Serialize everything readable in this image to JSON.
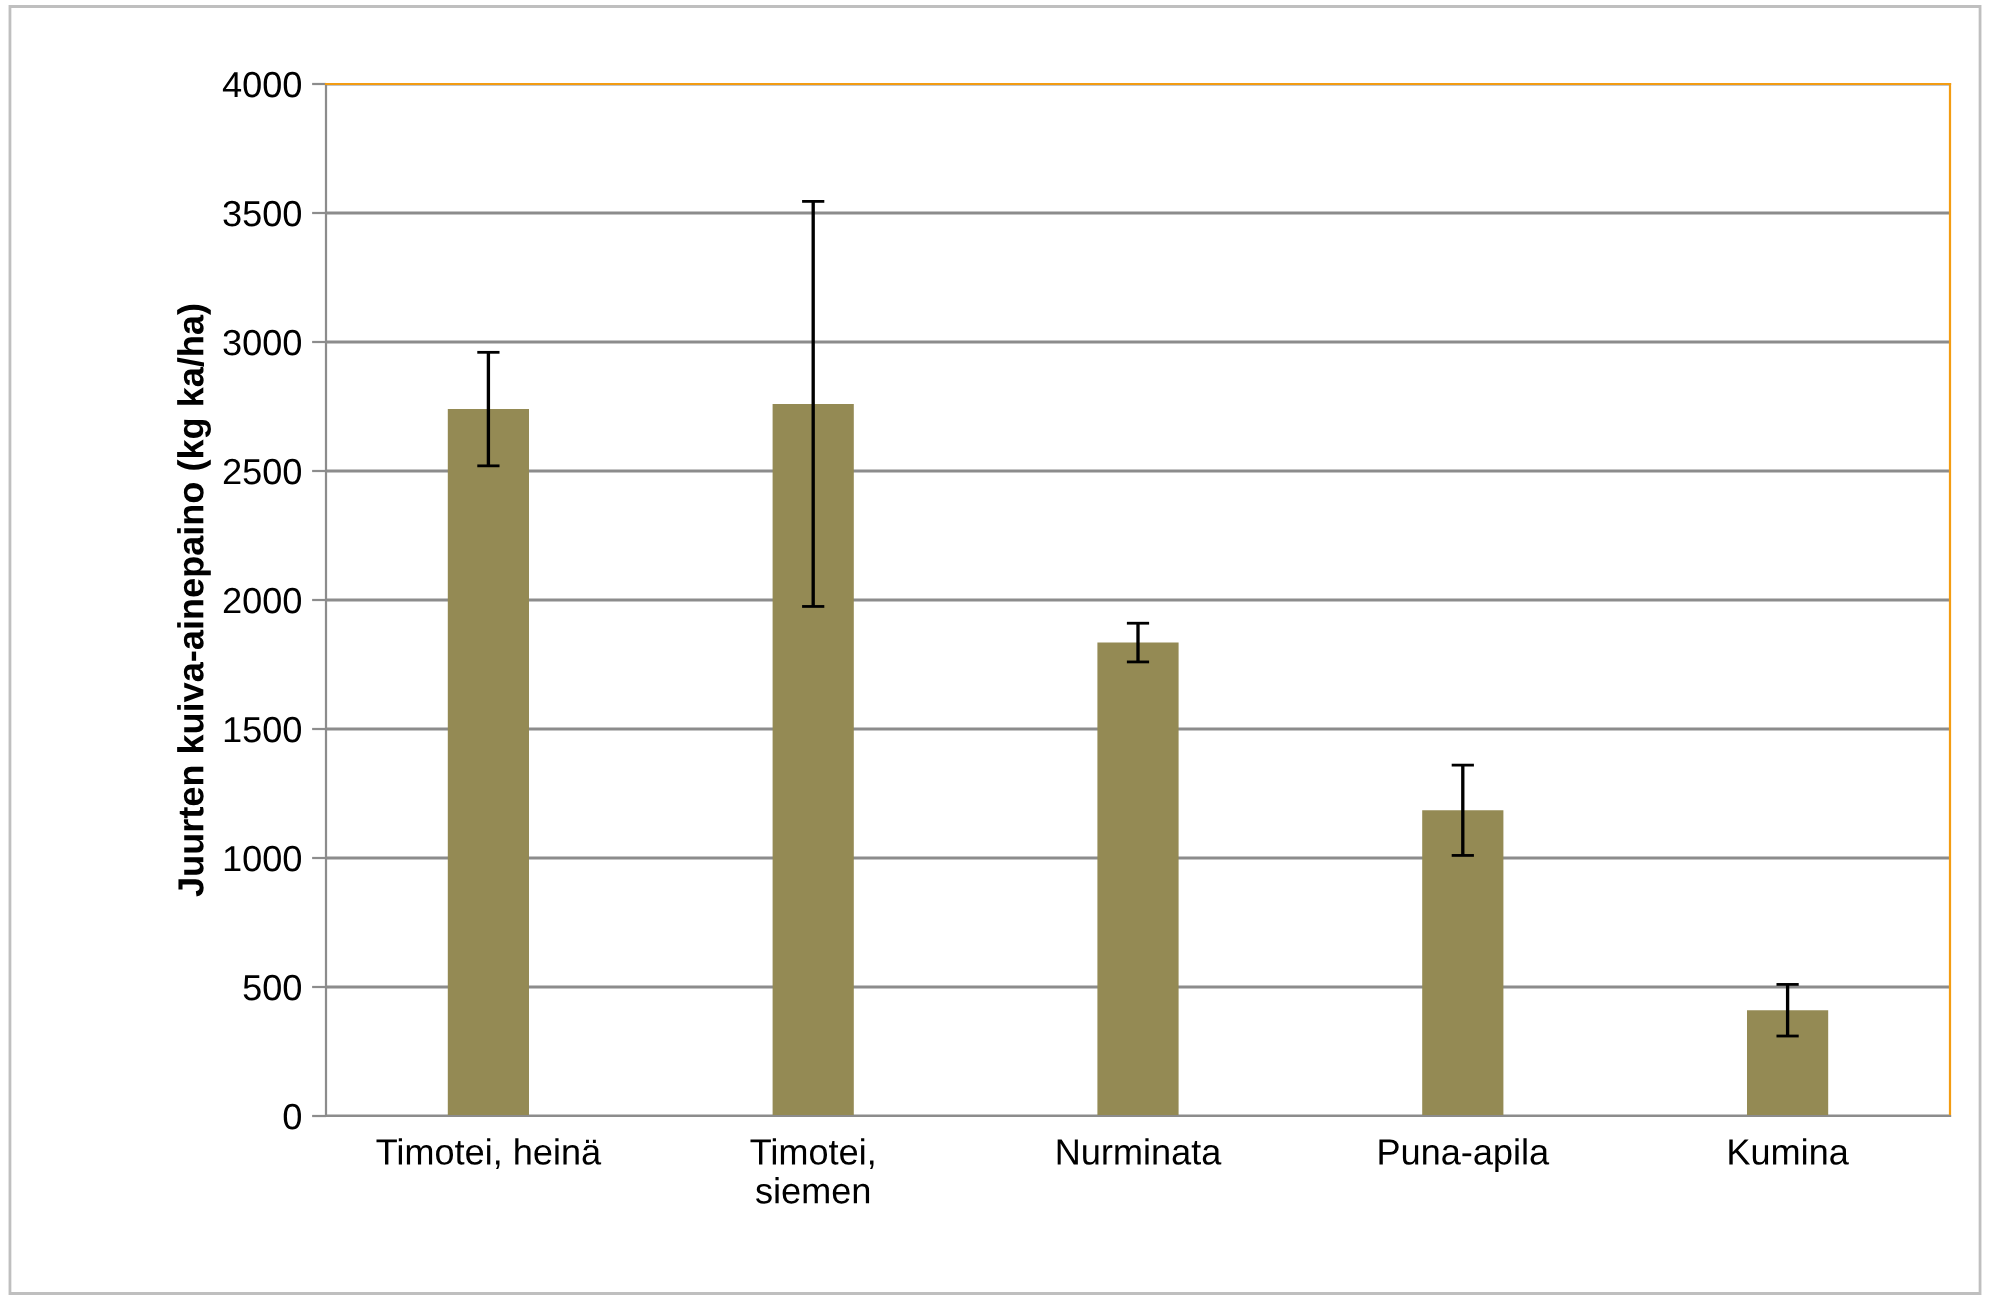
{
  "chart_data": {
    "type": "bar",
    "ylabel": "Juurten kuiva-ainepaino (kg ka/ha)",
    "categories": [
      "Timotei, heinä",
      "Timotei,\nsiemen",
      "Nurminata",
      "Puna-apila",
      "Kumina"
    ],
    "values": [
      2740,
      2760,
      1835,
      1185,
      410
    ],
    "errors": [
      220,
      785,
      75,
      175,
      100
    ],
    "color": "#948a54",
    "ylim": [
      0,
      4000
    ],
    "yticks": [
      0,
      500,
      1000,
      1500,
      2000,
      2500,
      3000,
      3500,
      4000
    ],
    "grid": "y"
  }
}
